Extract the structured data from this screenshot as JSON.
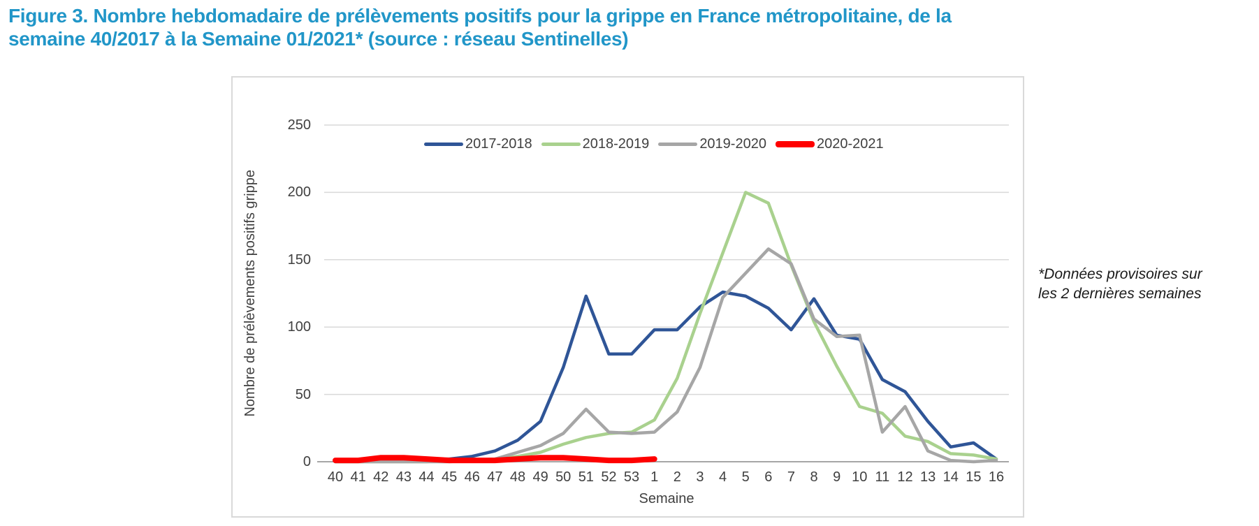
{
  "title": {
    "text": "Figure 3. Nombre hebdomadaire de prélèvements positifs pour la grippe en France métropolitaine, de la\nsemaine 40/2017 à la Semaine 01/2021* (source : réseau Sentinelles)",
    "color": "#2196c8"
  },
  "annotation": {
    "text": "*Données provisoires sur\nles 2 dernières semaines"
  },
  "colors": {
    "gridline": "#d9d9d9",
    "axis_line": "#a6a6a6",
    "tick_text": "#404040",
    "chart_border": "#d9d9d9"
  },
  "chart_data": {
    "type": "line",
    "title": "",
    "xlabel": "Semaine",
    "ylabel": "Nombre de prélèvements positifs grippe",
    "ylim": [
      0,
      250
    ],
    "y_ticks": [
      0,
      50,
      100,
      150,
      200,
      250
    ],
    "grid": "horizontal",
    "legend_position": "top-center",
    "categories": [
      "40",
      "41",
      "42",
      "43",
      "44",
      "45",
      "46",
      "47",
      "48",
      "49",
      "50",
      "51",
      "52",
      "53",
      "1",
      "2",
      "3",
      "4",
      "5",
      "6",
      "7",
      "8",
      "9",
      "10",
      "11",
      "12",
      "13",
      "14",
      "15",
      "16"
    ],
    "series": [
      {
        "name": "2017-2018",
        "color": "#2f5597",
        "width": 4.5,
        "values": [
          1,
          1,
          3,
          3,
          2,
          2,
          4,
          8,
          16,
          30,
          70,
          123,
          80,
          80,
          98,
          98,
          115,
          126,
          123,
          114,
          98,
          121,
          94,
          91,
          61,
          52,
          30,
          11,
          14,
          2
        ]
      },
      {
        "name": "2018-2019",
        "color": "#a9d18e",
        "width": 4.5,
        "values": [
          0,
          0,
          0,
          0,
          0,
          1,
          1,
          2,
          4,
          7,
          13,
          18,
          21,
          22,
          31,
          62,
          110,
          155,
          200,
          192,
          146,
          104,
          71,
          41,
          36,
          19,
          15,
          6,
          5,
          2
        ]
      },
      {
        "name": "2019-2020",
        "color": "#a6a6a6",
        "width": 4.5,
        "values": [
          0,
          0,
          0,
          0,
          0,
          0,
          1,
          2,
          7,
          12,
          21,
          39,
          22,
          21,
          22,
          37,
          70,
          122,
          140,
          158,
          147,
          106,
          93,
          94,
          22,
          41,
          8,
          1,
          0,
          1
        ]
      },
      {
        "name": "2020-2021",
        "color": "#ff0000",
        "width": 8,
        "values": [
          1,
          1,
          3,
          3,
          2,
          1,
          1,
          1,
          2,
          3,
          3,
          2,
          1,
          1,
          2,
          null,
          null,
          null,
          null,
          null,
          null,
          null,
          null,
          null,
          null,
          null,
          null,
          null,
          null,
          null
        ]
      }
    ]
  }
}
